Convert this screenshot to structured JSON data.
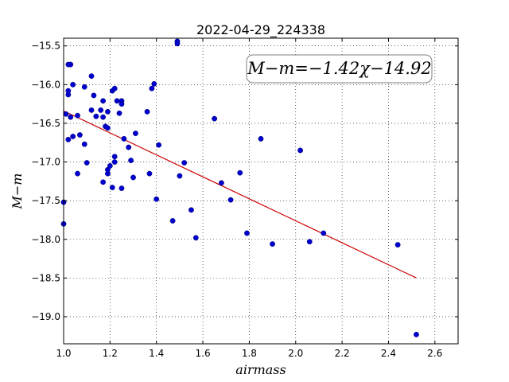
{
  "chart_data": {
    "type": "scatter",
    "title": "2022-04-29_224338",
    "xlabel": "airmass",
    "ylabel": "M−m",
    "xlim": [
      1.0,
      2.7
    ],
    "ylim": [
      -19.35,
      -15.4
    ],
    "y_inverted": true,
    "grid": true,
    "x_ticks": [
      "1.0",
      "1.2",
      "1.4",
      "1.6",
      "1.8",
      "2.0",
      "2.2",
      "2.4",
      "2.6"
    ],
    "y_ticks": [
      "−15.5",
      "−16.0",
      "−16.5",
      "−17.0",
      "−17.5",
      "−18.0",
      "−18.5",
      "−19.0"
    ],
    "annotation": "M−m=−1.42χ−14.92",
    "fit": {
      "slope": -1.42,
      "intercept": -14.92,
      "x_range": [
        1.0,
        2.52
      ],
      "color": "#cc0000"
    },
    "marker_color": "#0000cc",
    "points": [
      {
        "x": 1.0,
        "y": -17.52
      },
      {
        "x": 1.0,
        "y": -17.8
      },
      {
        "x": 1.01,
        "y": -16.38
      },
      {
        "x": 1.02,
        "y": -16.13
      },
      {
        "x": 1.02,
        "y": -16.08
      },
      {
        "x": 1.02,
        "y": -15.74
      },
      {
        "x": 1.03,
        "y": -15.74
      },
      {
        "x": 1.02,
        "y": -16.71
      },
      {
        "x": 1.03,
        "y": -16.42
      },
      {
        "x": 1.04,
        "y": -16.0
      },
      {
        "x": 1.04,
        "y": -16.67
      },
      {
        "x": 1.06,
        "y": -16.4
      },
      {
        "x": 1.06,
        "y": -17.15
      },
      {
        "x": 1.07,
        "y": -16.65
      },
      {
        "x": 1.09,
        "y": -16.03
      },
      {
        "x": 1.09,
        "y": -16.77
      },
      {
        "x": 1.1,
        "y": -17.01
      },
      {
        "x": 1.12,
        "y": -15.89
      },
      {
        "x": 1.12,
        "y": -16.33
      },
      {
        "x": 1.13,
        "y": -16.14
      },
      {
        "x": 1.14,
        "y": -16.41
      },
      {
        "x": 1.16,
        "y": -16.33
      },
      {
        "x": 1.17,
        "y": -16.21
      },
      {
        "x": 1.17,
        "y": -16.42
      },
      {
        "x": 1.17,
        "y": -17.26
      },
      {
        "x": 1.18,
        "y": -16.54
      },
      {
        "x": 1.19,
        "y": -16.35
      },
      {
        "x": 1.19,
        "y": -16.56
      },
      {
        "x": 1.19,
        "y": -17.15
      },
      {
        "x": 1.19,
        "y": -17.1
      },
      {
        "x": 1.2,
        "y": -17.05
      },
      {
        "x": 1.21,
        "y": -16.08
      },
      {
        "x": 1.21,
        "y": -17.33
      },
      {
        "x": 1.22,
        "y": -17.0
      },
      {
        "x": 1.22,
        "y": -16.93
      },
      {
        "x": 1.22,
        "y": -16.05
      },
      {
        "x": 1.23,
        "y": -16.21
      },
      {
        "x": 1.24,
        "y": -16.37
      },
      {
        "x": 1.25,
        "y": -16.21
      },
      {
        "x": 1.25,
        "y": -16.25
      },
      {
        "x": 1.25,
        "y": -17.34
      },
      {
        "x": 1.26,
        "y": -16.7
      },
      {
        "x": 1.28,
        "y": -16.81
      },
      {
        "x": 1.29,
        "y": -16.98
      },
      {
        "x": 1.3,
        "y": -17.2
      },
      {
        "x": 1.31,
        "y": -16.63
      },
      {
        "x": 1.36,
        "y": -16.35
      },
      {
        "x": 1.37,
        "y": -17.15
      },
      {
        "x": 1.38,
        "y": -16.05
      },
      {
        "x": 1.39,
        "y": -15.99
      },
      {
        "x": 1.4,
        "y": -17.48
      },
      {
        "x": 1.41,
        "y": -16.78
      },
      {
        "x": 1.47,
        "y": -17.76
      },
      {
        "x": 1.49,
        "y": -15.44
      },
      {
        "x": 1.49,
        "y": -15.47
      },
      {
        "x": 1.5,
        "y": -17.18
      },
      {
        "x": 1.52,
        "y": -17.01
      },
      {
        "x": 1.55,
        "y": -17.62
      },
      {
        "x": 1.57,
        "y": -17.98
      },
      {
        "x": 1.65,
        "y": -16.44
      },
      {
        "x": 1.68,
        "y": -17.27
      },
      {
        "x": 1.72,
        "y": -17.49
      },
      {
        "x": 1.76,
        "y": -17.14
      },
      {
        "x": 1.79,
        "y": -17.92
      },
      {
        "x": 1.85,
        "y": -16.7
      },
      {
        "x": 1.9,
        "y": -18.06
      },
      {
        "x": 2.02,
        "y": -16.85
      },
      {
        "x": 2.06,
        "y": -18.03
      },
      {
        "x": 2.12,
        "y": -17.92
      },
      {
        "x": 2.44,
        "y": -18.07
      },
      {
        "x": 2.52,
        "y": -19.23
      }
    ]
  }
}
